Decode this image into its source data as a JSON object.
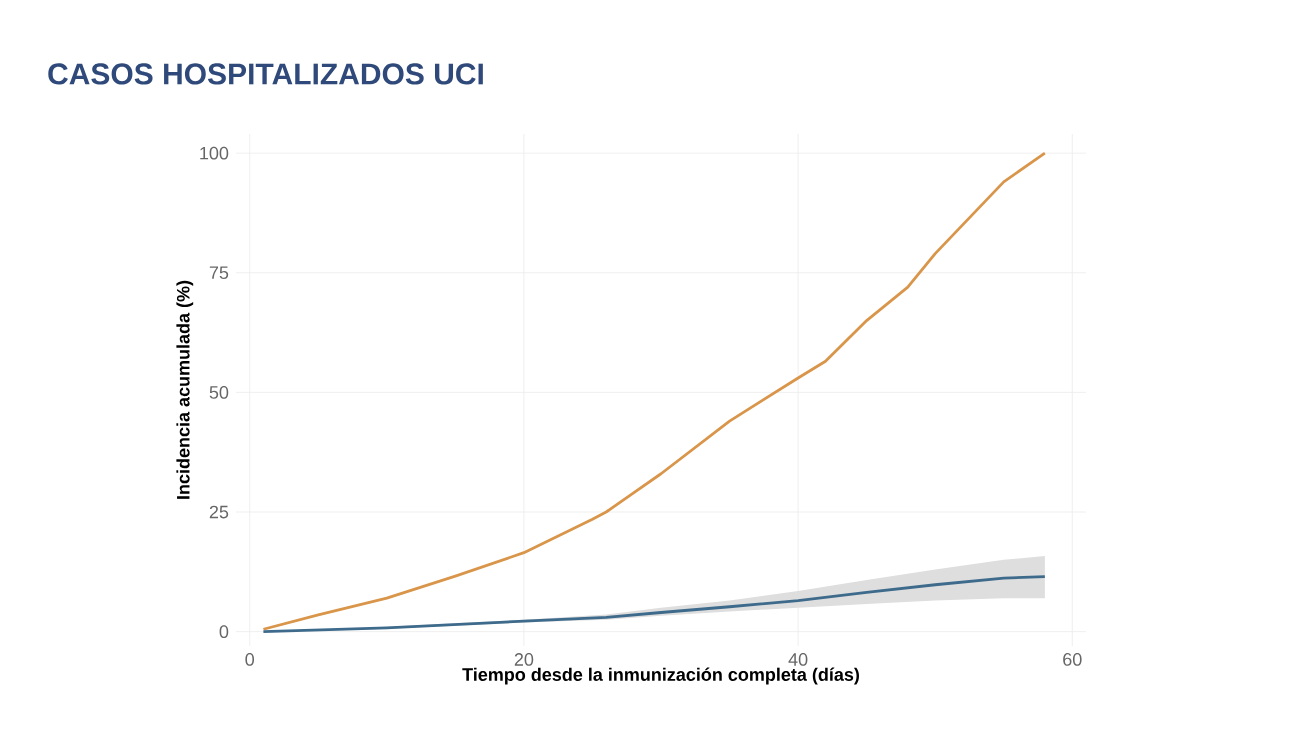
{
  "chart_data": {
    "type": "line",
    "title": "CASOS HOSPITALIZADOS UCI",
    "xlabel": "Tiempo desde la inmunización completa (días)",
    "ylabel": "Incidencia acumulada (%)",
    "xlim": [
      -1,
      61
    ],
    "ylim": [
      -3,
      104
    ],
    "xticks": [
      0,
      20,
      40,
      60
    ],
    "yticks": [
      0,
      25,
      50,
      75,
      100
    ],
    "grid": true,
    "marker": "none",
    "line_style": "solid",
    "series": [
      {
        "color": "#d9954a",
        "x": [
          1,
          5,
          10,
          15,
          20,
          25,
          26,
          28,
          30,
          35,
          40,
          42,
          45,
          48,
          50,
          55,
          58
        ],
        "values": [
          0.5,
          3.5,
          7,
          11.6,
          16.5,
          23.5,
          25,
          29,
          33,
          44,
          53,
          56.5,
          65,
          72,
          79,
          94,
          100
        ]
      },
      {
        "color": "#3e6b8c",
        "x": [
          1,
          10,
          20,
          26,
          30,
          35,
          40,
          45,
          50,
          55,
          58
        ],
        "values": [
          0,
          0.8,
          2.2,
          3,
          4,
          5.2,
          6.5,
          8.2,
          9.8,
          11.2,
          11.5
        ],
        "lower": [
          0,
          0.6,
          1.9,
          2.5,
          3.3,
          4.2,
          5,
          5.8,
          6.5,
          7,
          7
        ],
        "upper": [
          0,
          1,
          2.5,
          3.6,
          5,
          6.5,
          8.5,
          10.8,
          13,
          15,
          15.8
        ]
      }
    ]
  }
}
